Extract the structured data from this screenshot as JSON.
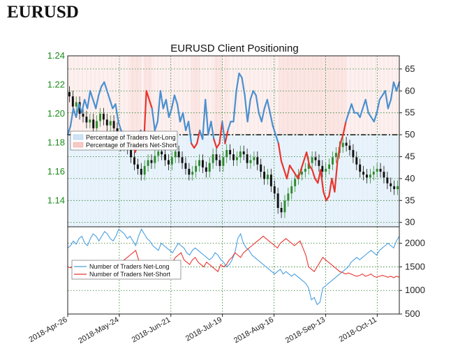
{
  "page": {
    "heading": "EURUSD"
  },
  "chart_data": [
    {
      "type": "line",
      "title": "EURUSD Client Positioning",
      "left_axis": {
        "ticks": [
          "1.14",
          "1.16",
          "1.18",
          "1.20",
          "1.22",
          "1.24"
        ],
        "range": [
          1.122,
          1.24
        ]
      },
      "right_axis": {
        "ticks": [
          "30",
          "35",
          "40",
          "45",
          "50",
          "55",
          "60",
          "65"
        ],
        "range": [
          29,
          68
        ]
      },
      "x_ticks": [
        "2018-Apr-26",
        "2018-May-24",
        "2018-Jun-21",
        "2018-Jul-19",
        "2018-Aug-16",
        "2018-Sep-13",
        "2018-Oct-11"
      ],
      "x_tick_days": [
        0,
        28,
        56,
        84,
        112,
        140,
        168
      ],
      "x_range": [
        0,
        180
      ],
      "reference_line": 50,
      "legend": [
        "Percentage of Traders Net-Long",
        "Percentage of Traders Net-Short"
      ],
      "legend_position": "left",
      "grid": true,
      "colors": {
        "long": "#4a8fd0",
        "short": "#e8352e",
        "candle_up": "#2e8b2e",
        "candle_down": "#111111"
      },
      "candles_close": [
        1.212,
        1.205,
        1.208,
        1.2,
        1.198,
        1.194,
        1.196,
        1.19,
        1.195,
        1.2,
        1.196,
        1.192,
        1.195,
        1.19,
        1.182,
        1.178,
        1.18,
        1.176,
        1.17,
        1.165,
        1.162,
        1.158,
        1.164,
        1.168,
        1.166,
        1.171,
        1.174,
        1.172,
        1.168,
        1.165,
        1.17,
        1.174,
        1.17,
        1.166,
        1.162,
        1.158,
        1.16,
        1.164,
        1.168,
        1.163,
        1.16,
        1.166,
        1.172,
        1.168,
        1.164,
        1.17,
        1.175,
        1.172,
        1.168,
        1.17,
        1.174,
        1.172,
        1.166,
        1.168,
        1.17,
        1.165,
        1.16,
        1.155,
        1.158,
        1.15,
        1.145,
        1.135,
        1.132,
        1.14,
        1.145,
        1.15,
        1.155,
        1.158,
        1.16,
        1.162,
        1.166,
        1.17,
        1.168,
        1.164,
        1.16,
        1.162,
        1.165,
        1.17,
        1.173,
        1.177,
        1.18,
        1.178,
        1.175,
        1.17,
        1.165,
        1.16,
        1.158,
        1.156,
        1.158,
        1.16,
        1.162,
        1.16,
        1.156,
        1.152,
        1.15,
        1.148,
        1.15
      ],
      "percent_long": [
        50,
        52,
        56,
        54,
        57,
        55,
        58,
        56,
        60,
        58,
        56,
        59,
        61,
        62,
        60,
        58,
        56,
        57,
        53,
        51,
        50,
        49,
        48,
        49,
        46,
        48,
        51,
        47,
        60,
        58,
        56,
        51,
        53,
        60,
        56,
        58,
        54,
        56,
        59,
        57,
        53,
        55,
        51,
        53,
        48,
        47,
        48,
        51,
        49,
        58,
        50,
        53,
        49,
        47,
        48,
        53,
        48,
        51,
        53,
        53,
        60,
        64,
        63,
        59,
        53,
        58,
        60,
        59,
        55,
        53,
        56,
        58,
        55,
        52,
        50,
        48,
        44,
        42,
        40,
        43,
        42,
        41,
        40,
        42,
        44,
        46,
        43,
        42,
        40,
        39,
        42,
        37,
        35,
        36,
        40,
        37,
        44,
        48,
        50,
        53,
        55,
        57,
        55,
        55,
        54,
        56,
        58,
        55,
        54,
        53,
        55,
        58,
        59,
        60,
        56,
        58,
        62,
        60,
        62
      ],
      "percent_short_mask": [
        0,
        0,
        0,
        0,
        0,
        0,
        0,
        0,
        0,
        0,
        0,
        0,
        0,
        0,
        0,
        0,
        0,
        0,
        0,
        0,
        0,
        0,
        1,
        1,
        1,
        1,
        0,
        1,
        1,
        1,
        0,
        0,
        0,
        0,
        0,
        0,
        0,
        0,
        0,
        0,
        0,
        0,
        0,
        0,
        1,
        1,
        1,
        0,
        0,
        0,
        0,
        0,
        1,
        1,
        1,
        0,
        1,
        0,
        0,
        0,
        0,
        0,
        0,
        0,
        0,
        0,
        0,
        0,
        0,
        0,
        0,
        0,
        0,
        0,
        0,
        1,
        1,
        1,
        1,
        1,
        1,
        1,
        1,
        1,
        1,
        1,
        1,
        1,
        1,
        1,
        1,
        1,
        1,
        1,
        1,
        1,
        1,
        1,
        1,
        0,
        0,
        0,
        0,
        0,
        0,
        0,
        0,
        0,
        0,
        0,
        0,
        0,
        0,
        0,
        0,
        0,
        0,
        0,
        0
      ]
    },
    {
      "type": "line",
      "right_axis": {
        "ticks": [
          "500",
          "1000",
          "1500",
          "2000"
        ],
        "range": [
          500,
          2350
        ]
      },
      "x_ticks": [
        "2018-Apr-26",
        "2018-May-24",
        "2018-Jun-21",
        "2018-Jul-19",
        "2018-Aug-16",
        "2018-Sep-13",
        "2018-Oct-11"
      ],
      "grid": true,
      "legend_position": "left",
      "series": [
        {
          "name": "Number of Traders Net-Long",
          "color": "#4a9fe0",
          "values": [
            1900,
            1950,
            2050,
            1980,
            2100,
            2150,
            2000,
            1950,
            2100,
            2200,
            2150,
            2050,
            2150,
            2250,
            2200,
            2100,
            2050,
            2150,
            2300,
            2250,
            2200,
            2100,
            2150,
            2050,
            1950,
            2150,
            2300,
            2200,
            2100,
            2050,
            1950,
            1900,
            1850,
            2000,
            1950,
            1900,
            1850,
            1800,
            1900,
            2000,
            1950,
            1900,
            1800,
            1750,
            1850,
            1900,
            1850,
            1800,
            1750,
            1700,
            1650,
            1700,
            1800,
            1750,
            1650,
            1600,
            1500,
            1550,
            1650,
            1800,
            2100,
            2200,
            2000,
            1900,
            1850,
            1750,
            1700,
            1650,
            1600,
            1550,
            1500,
            1450,
            1400,
            1350,
            1400,
            1450,
            1350,
            1400,
            1350,
            1300,
            1350,
            1300,
            1250,
            1200,
            1150,
            1050,
            800,
            850,
            700,
            750,
            1050,
            1100,
            1150,
            1200,
            1250,
            1300,
            1350,
            1400,
            1450,
            1500,
            1600,
            1650,
            1700,
            1650,
            1700,
            1750,
            1800,
            1850,
            1800,
            1750,
            1850,
            1900,
            1950,
            2000,
            1950,
            1900,
            2050,
            2150
          ]
        },
        {
          "name": "Number of Traders Net-Short",
          "color": "#e8352e",
          "values": [
            1500,
            1480,
            1520,
            1450,
            1500,
            1480,
            1420,
            1460,
            1400,
            1420,
            1380,
            1450,
            1430,
            1400,
            1380,
            1420,
            1450,
            1480,
            1550,
            1600,
            1650,
            1700,
            1750,
            1800,
            1850,
            1650,
            1500,
            1480,
            1450,
            1500,
            1520,
            1550,
            1600,
            1500,
            1450,
            1500,
            1550,
            1600,
            1700,
            1750,
            1800,
            1650,
            1600,
            1550,
            1650,
            1700,
            1600,
            1550,
            1500,
            1600,
            1550,
            1500,
            1450,
            1400,
            1550,
            1500,
            1550,
            1650,
            1700,
            1800,
            1750,
            1700,
            1800,
            1850,
            1900,
            1950,
            2000,
            2050,
            2100,
            2150,
            2100,
            2050,
            2000,
            1950,
            1900,
            2000,
            2050,
            2100,
            2050,
            2000,
            1950,
            2000,
            2050,
            1900,
            1750,
            1500,
            1450,
            1400,
            1500,
            1600,
            1700,
            1650,
            1600,
            1550,
            1500,
            1450,
            1400,
            1380,
            1350,
            1370,
            1350,
            1320,
            1300,
            1320,
            1350,
            1300,
            1320,
            1350,
            1300,
            1280,
            1300,
            1320,
            1300,
            1280,
            1300,
            1270,
            1300,
            1280
          ]
        }
      ]
    }
  ]
}
